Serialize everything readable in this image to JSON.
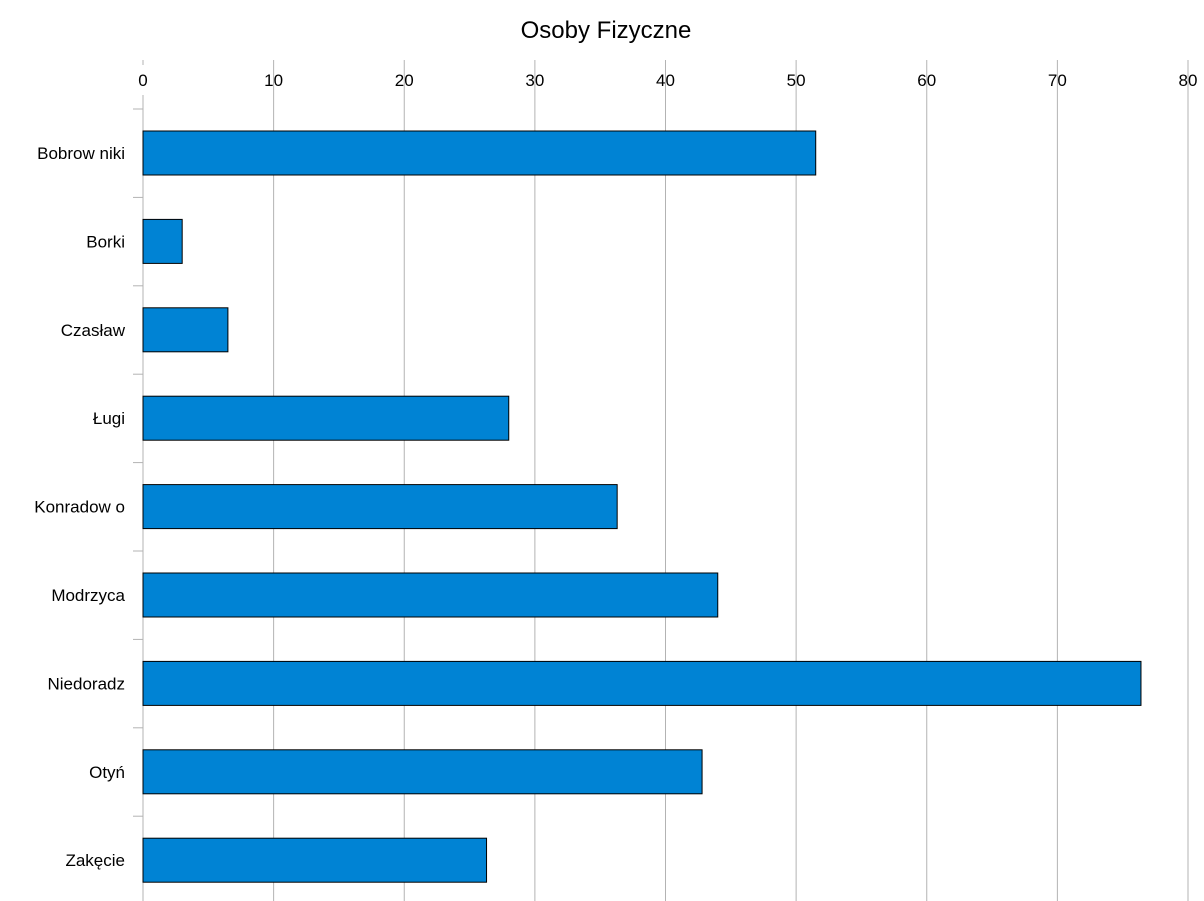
{
  "chart_data": {
    "type": "bar",
    "orientation": "horizontal",
    "title": "Osoby Fizyczne",
    "categories": [
      "Bobrow niki",
      "Borki",
      "Czasław",
      "Ługi",
      "Konradow o",
      "Modrzyca",
      "Niedoradz",
      "Otyń",
      "Zakęcie"
    ],
    "values": [
      51.5,
      3,
      6.5,
      28,
      36.3,
      44,
      76.4,
      42.8,
      26.3
    ],
    "x_ticks": [
      "0",
      "10",
      "20",
      "30",
      "40",
      "50",
      "60",
      "70",
      "80"
    ],
    "xlim": [
      0,
      80
    ],
    "xlabel": "",
    "ylabel": "",
    "x_axis_position": "top",
    "grid": "vertical",
    "legend": "none",
    "bar_color": "#0083D4",
    "bar_border_color": "#000000",
    "grid_color": "#B3B3B3"
  }
}
